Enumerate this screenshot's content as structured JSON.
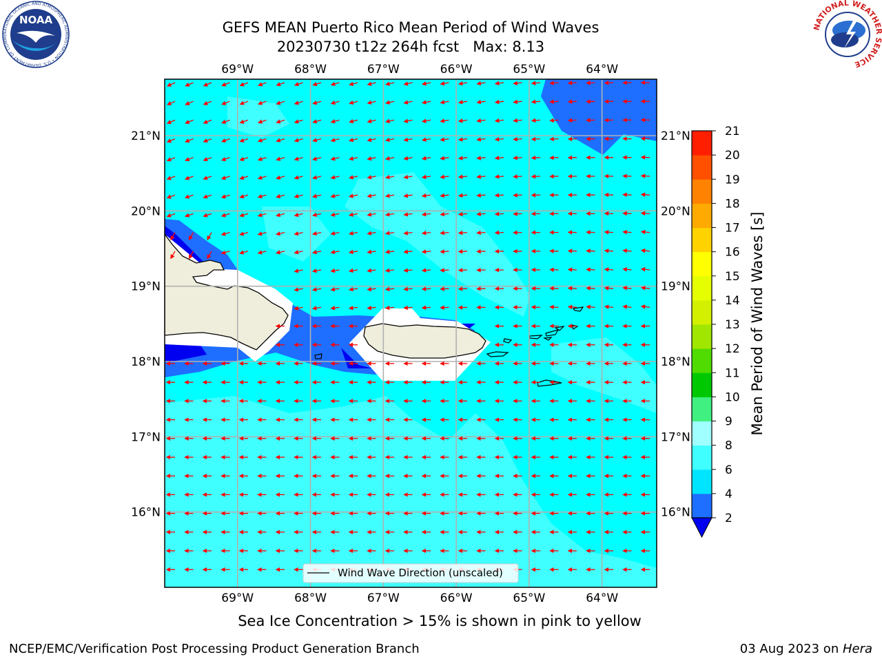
{
  "header": {
    "title_line1": "GEFS MEAN Puerto Rico Mean Period of Wind Waves",
    "title_line2": "20230730 t12z 264h fcst   Max: 8.13"
  },
  "logos": {
    "left": {
      "text": "NOAA",
      "ring_text": "NATIONAL OCEANIC AND ATMOSPHERIC ADMINISTRATION • U.S. DEPARTMENT OF COMMERCE"
    },
    "right": {
      "ring_text": "NATIONAL WEATHER SERVICE"
    }
  },
  "map": {
    "lon_labels": [
      "69°W",
      "68°W",
      "67°W",
      "66°W",
      "65°W",
      "64°W"
    ],
    "lat_labels": [
      "21°N",
      "20°N",
      "19°N",
      "18°N",
      "17°N",
      "16°N"
    ],
    "lon_range": [
      -70.0,
      -63.25
    ],
    "lat_range": [
      15.0,
      21.75
    ],
    "grid": true,
    "legend": "Wind Wave Direction (unscaled)",
    "legend_position": "bottom-center"
  },
  "colorbar": {
    "label": "Mean Period of Wind Waves [s]",
    "levels": [
      "2",
      "4",
      "6",
      "8",
      "9",
      "10",
      "11",
      "12",
      "13",
      "14",
      "15",
      "16",
      "17",
      "18",
      "19",
      "20",
      "21"
    ],
    "colors": [
      "#1e6eff",
      "#00e5ff",
      "#40ffff",
      "#a0ffff",
      "#40f080",
      "#00c800",
      "#50dc00",
      "#a0e600",
      "#d2f000",
      "#e6ff00",
      "#ffff00",
      "#ffd200",
      "#ffaa00",
      "#ff8200",
      "#ff5000",
      "#ff1e00"
    ],
    "extend_color": "#0000f0"
  },
  "colors": {
    "land": "#efeedc",
    "ocean_main": "#00ffff",
    "ocean_light": "#40ffff",
    "deep_blue": "#1e6eff",
    "dark_blue": "#0000f0",
    "arrow": "#ff0000",
    "grid": "#b0b0b0"
  },
  "footer": {
    "caption": "Sea Ice Concentration > 15% is shown in pink to yellow",
    "left": "NCEP/EMC/Verification Post Processing Product Generation Branch",
    "right_date": "03 Aug 2023 on ",
    "right_host": "Hera"
  }
}
